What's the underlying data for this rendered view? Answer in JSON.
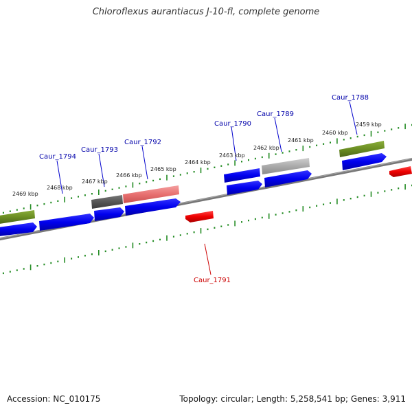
{
  "header": {
    "title": "Chloroflexus aurantiacus J-10-fl, complete genome"
  },
  "footer": {
    "accession": "Accession: NC_010175",
    "summary": "Topology: circular; Length: 5,258,541 bp; Genes: 3,911"
  },
  "map": {
    "kbp_labels": [
      "2469 kbp",
      "2468 kbp",
      "2467 kbp",
      "2466 kbp",
      "2465 kbp",
      "2464 kbp",
      "2463 kbp",
      "2462 kbp",
      "2461 kbp",
      "2460 kbp",
      "2459 kbp"
    ],
    "gene_labels": [
      {
        "name": "Caur_1794",
        "color": "#0000aa"
      },
      {
        "name": "Caur_1793",
        "color": "#0000aa"
      },
      {
        "name": "Caur_1792",
        "color": "#0000aa"
      },
      {
        "name": "Caur_1790",
        "color": "#0000aa"
      },
      {
        "name": "Caur_1789",
        "color": "#0000aa"
      },
      {
        "name": "Caur_1788",
        "color": "#0000aa"
      },
      {
        "name": "Caur_1791",
        "color": "#cc0000"
      }
    ],
    "colors": {
      "forward_cds": "#0000ee",
      "reverse_cds": "#ee0000",
      "rrna_green": "#6b8e23",
      "pseudo_gray": "#555555",
      "light_gray": "#aaaaaa",
      "pink": "#e87070",
      "backbone": "#777777",
      "tick_green": "#228b22"
    }
  }
}
